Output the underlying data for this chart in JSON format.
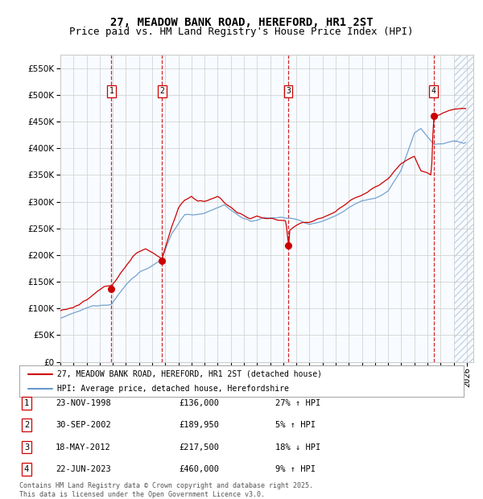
{
  "title": "27, MEADOW BANK ROAD, HEREFORD, HR1 2ST",
  "subtitle": "Price paid vs. HM Land Registry's House Price Index (HPI)",
  "xlim_start": 1995.0,
  "xlim_end": 2026.5,
  "ylim": [
    0,
    575000
  ],
  "yticks": [
    0,
    50000,
    100000,
    150000,
    200000,
    250000,
    300000,
    350000,
    400000,
    450000,
    500000,
    550000
  ],
  "sale_years": [
    1998.896,
    2002.747,
    2012.378,
    2023.472
  ],
  "sale_prices": [
    136000,
    189950,
    217500,
    460000
  ],
  "sale_labels": [
    "1",
    "2",
    "3",
    "4"
  ],
  "sale_info": [
    {
      "label": "1",
      "date": "23-NOV-1998",
      "price": "£136,000",
      "hpi": "27% ↑ HPI"
    },
    {
      "label": "2",
      "date": "30-SEP-2002",
      "price": "£189,950",
      "hpi": "5% ↑ HPI"
    },
    {
      "label": "3",
      "date": "18-MAY-2012",
      "price": "£217,500",
      "hpi": "18% ↓ HPI"
    },
    {
      "label": "4",
      "date": "22-JUN-2023",
      "price": "£460,000",
      "hpi": "9% ↑ HPI"
    }
  ],
  "legend_line1": "27, MEADOW BANK ROAD, HEREFORD, HR1 2ST (detached house)",
  "legend_line2": "HPI: Average price, detached house, Herefordshire",
  "footer": "Contains HM Land Registry data © Crown copyright and database right 2025.\nThis data is licensed under the Open Government Licence v3.0.",
  "line_color_red": "#cc0000",
  "line_color_blue": "#6699cc",
  "shade_color": "#ddeeff",
  "vline_color": "#cc0000",
  "background_color": "#ffffff",
  "grid_color": "#cccccc",
  "title_fontsize": 10,
  "subtitle_fontsize": 9,
  "tick_fontsize": 7.5
}
